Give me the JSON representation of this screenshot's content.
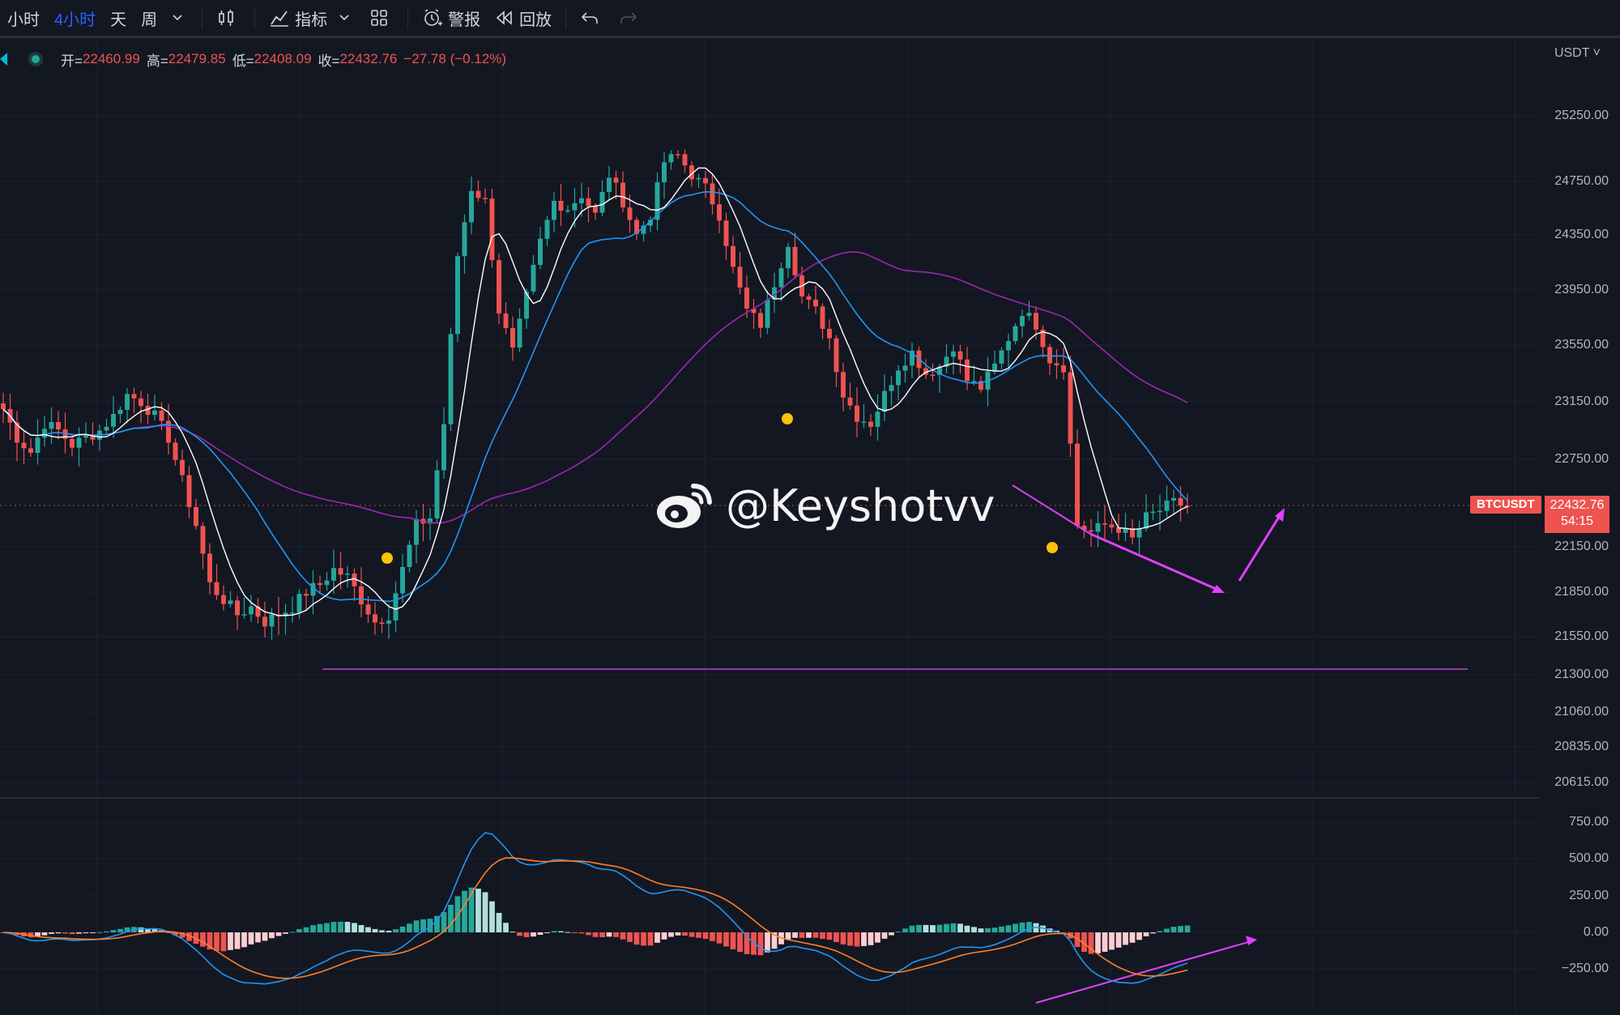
{
  "toolbar": {
    "intervals": [
      "小时",
      "4小时",
      "天",
      "周"
    ],
    "active_interval": "4小时",
    "indicators_label": "指标",
    "alert_label": "警报",
    "replay_label": "回放"
  },
  "legend": {
    "open_label": "开=",
    "open": "22460.99",
    "high_label": "高=",
    "high": "22479.85",
    "low_label": "低=",
    "low": "22408.09",
    "close_label": "收=",
    "close": "22432.76",
    "change": "−27.78 (−0.12%)"
  },
  "price_axis": {
    "currency": "USDT",
    "ticks": [
      "25250.00",
      "24750.00",
      "24350.00",
      "23950.00",
      "23550.00",
      "23150.00",
      "22750.00",
      "22150.00",
      "21850.00",
      "21550.00",
      "21300.00",
      "21060.00",
      "20835.00",
      "20615.00"
    ],
    "symbol": "BTCUSDT",
    "last_price": "22432.76",
    "countdown": "54:15"
  },
  "macd_axis": {
    "ticks": [
      "750.00",
      "500.00",
      "250.00",
      "0.00",
      "−250.00"
    ]
  },
  "watermark": {
    "text": "@Keyshotvv"
  },
  "colors": {
    "background": "#131722",
    "up": "#26a69a",
    "down": "#ef5350",
    "ma_fast": "#ffffff",
    "ma_mid": "#2196f3",
    "ma_slow": "#9c27b0",
    "annotation": "#e040fb",
    "signal_dot": "#ffc107",
    "macd_signal": "#ff7f27"
  },
  "chart_data": {
    "type": "candlestick",
    "symbol": "BTCUSDT",
    "y_range": [
      20615,
      25250
    ],
    "support_level": 21300,
    "closes_approx": [
      23100,
      22900,
      22800,
      23000,
      22950,
      22850,
      22900,
      22950,
      23050,
      23200,
      23150,
      23050,
      22900,
      22600,
      22300,
      21900,
      21800,
      21700,
      21750,
      21650,
      21700,
      21750,
      21850,
      21900,
      22000,
      21950,
      21800,
      21650,
      21700,
      22000,
      22300,
      22350,
      23000,
      24200,
      24700,
      24600,
      23800,
      23500,
      23900,
      24300,
      24600,
      24550,
      24650,
      24500,
      24800,
      24600,
      24350,
      24500,
      24900,
      24950,
      24800,
      24700,
      24500,
      24100,
      23800,
      23700,
      24000,
      24300,
      23900,
      23800,
      23600,
      23200,
      23050,
      23000,
      23200,
      23400,
      23500,
      23350,
      23400,
      23550,
      23300,
      23250,
      23400,
      23600,
      23800,
      23700,
      23450,
      23400,
      22300,
      22250,
      22300,
      22280,
      22200,
      22350,
      22400,
      22450,
      22430
    ],
    "macd": {
      "zero": 0,
      "range": [
        -300,
        780
      ]
    }
  }
}
